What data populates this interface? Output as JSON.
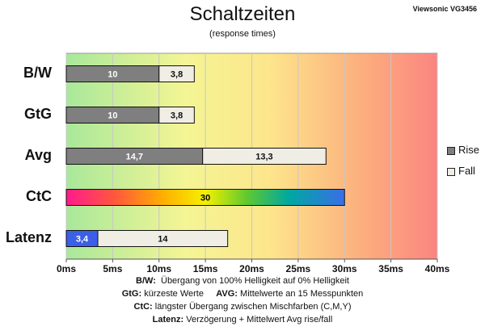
{
  "chart_data": {
    "type": "bar",
    "orientation": "horizontal",
    "stacked": true,
    "title": "Schaltzeiten",
    "subtitle": "(response times)",
    "brand": "Viewsonic VG3456",
    "categories": [
      "B/W",
      "GtG",
      "Avg",
      "CtC",
      "Latenz"
    ],
    "series": [
      {
        "name": "Rise",
        "values": [
          10,
          10,
          14.7,
          30,
          3.4
        ],
        "labels": [
          "10",
          "10",
          "14,7",
          "30",
          "3,4"
        ]
      },
      {
        "name": "Fall",
        "values": [
          3.8,
          3.8,
          13.3,
          null,
          14
        ],
        "labels": [
          "3,8",
          "3,8",
          "13,3",
          "",
          "14"
        ]
      }
    ],
    "xlim": [
      0,
      40
    ],
    "xticks": [
      0,
      5,
      10,
      15,
      20,
      25,
      30,
      35,
      40
    ],
    "xtick_labels": [
      "0ms",
      "5ms",
      "10ms",
      "15ms",
      "20ms",
      "25ms",
      "30ms",
      "35ms",
      "40ms"
    ],
    "grid": true,
    "legend_position": "right",
    "colors": {
      "rise": "#7f7f7f",
      "fall": "#efede4",
      "latenz_rise": "#3b5fe6",
      "bg_green": "#a8e89a",
      "bg_yellow": "#fbf591",
      "bg_red": "#fb8a82"
    }
  },
  "legend": {
    "rise": "Rise",
    "fall": "Fall"
  },
  "notes": [
    {
      "key": "B/W:",
      "text": "Übergang von 100% Helligkeit auf 0% Helligkeit"
    },
    {
      "key": "GtG:",
      "text": "kürzeste Werte",
      "key2": "AVG:",
      "text2": "Mittelwerte an 15 Messpunkten"
    },
    {
      "key": "CtC:",
      "text": "längster Übergang zwischen Mischfarben (C,M,Y)"
    },
    {
      "key": "Latenz:",
      "text": "Verzögerung + Mittelwert Avg rise/fall"
    }
  ]
}
